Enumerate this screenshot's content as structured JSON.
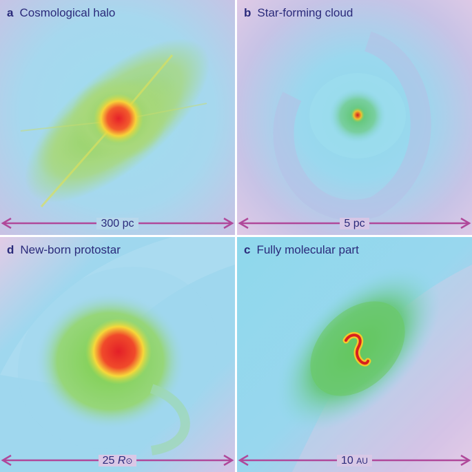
{
  "panels": [
    {
      "id": "a",
      "letter": "a",
      "title": "Cosmological halo",
      "scale": "300 pc"
    },
    {
      "id": "b",
      "letter": "b",
      "title": "Star-forming cloud",
      "scale": "5 pc"
    },
    {
      "id": "d",
      "letter": "d",
      "title": "New-born protostar",
      "scale_value": "25",
      "scale_symbol": "R",
      "scale_subscript": "⊙"
    },
    {
      "id": "c",
      "letter": "c",
      "title": "Fully molecular part",
      "scale_value": "10",
      "scale_unit": "AU"
    }
  ],
  "colors": {
    "background_violet": "#d8c8e6",
    "cyan": "#8fd9ec",
    "green": "#7ccf5a",
    "yellow": "#f2e43c",
    "red": "#e8242a",
    "arrow_magenta": "#b0489a",
    "label_navy": "#2a2a7a"
  }
}
